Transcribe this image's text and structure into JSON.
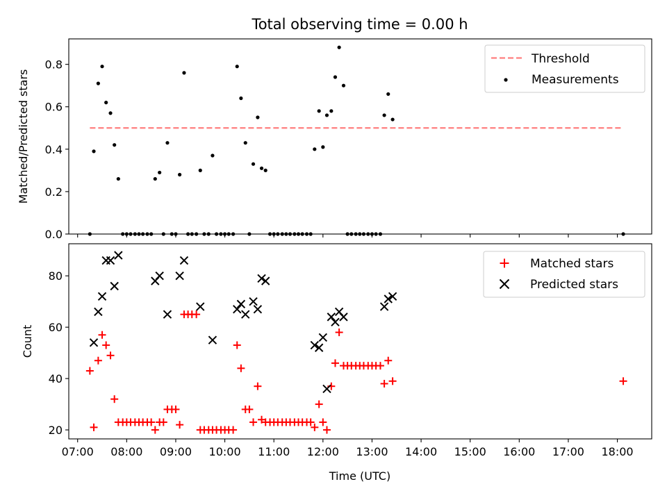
{
  "figure": {
    "title": "Total observing time = 0.00 h"
  },
  "chart_data": [
    {
      "type": "scatter",
      "ylabel": "Matched/Predicted stars",
      "xlim": [
        6.82,
        18.7
      ],
      "ylim": [
        0,
        0.92
      ],
      "yticks": [
        0.0,
        0.2,
        0.4,
        0.6,
        0.8
      ],
      "ytick_labels": [
        "0.0",
        "0.2",
        "0.4",
        "0.6",
        "0.8"
      ],
      "legend_position": "upper right",
      "series": [
        {
          "name": "Threshold",
          "kind": "dashed-line",
          "color": "#ff7f7f",
          "x": [
            7.25,
            18.1
          ],
          "y": [
            0.5,
            0.5
          ]
        },
        {
          "name": "Measurements",
          "kind": "points",
          "color": "#000000",
          "x": [
            7.25,
            7.33,
            7.42,
            7.5,
            7.58,
            7.67,
            7.75,
            7.83,
            7.92,
            8.0,
            8.08,
            8.17,
            8.25,
            8.33,
            8.42,
            8.5,
            8.58,
            8.67,
            8.75,
            8.83,
            8.92,
            9.0,
            9.08,
            9.17,
            9.25,
            9.33,
            9.42,
            9.5,
            9.58,
            9.67,
            9.75,
            9.83,
            9.92,
            10.0,
            10.08,
            10.17,
            10.25,
            10.33,
            10.42,
            10.5,
            10.58,
            10.67,
            10.75,
            10.83,
            10.92,
            11.0,
            11.08,
            11.17,
            11.25,
            11.33,
            11.42,
            11.5,
            11.58,
            11.67,
            11.75,
            11.83,
            11.92,
            12.0,
            12.08,
            12.17,
            12.25,
            12.33,
            12.42,
            12.5,
            12.58,
            12.67,
            12.75,
            12.83,
            12.92,
            13.0,
            13.08,
            13.17,
            13.25,
            13.33,
            13.42,
            18.12
          ],
          "y": [
            0.0,
            0.39,
            0.71,
            0.79,
            0.62,
            0.57,
            0.42,
            0.26,
            0.0,
            0.0,
            0.0,
            0.0,
            0.0,
            0.0,
            0.0,
            0.0,
            0.26,
            0.29,
            0.0,
            0.43,
            0.0,
            0.0,
            0.28,
            0.76,
            0.0,
            0.0,
            0.0,
            0.3,
            0.0,
            0.0,
            0.37,
            0.0,
            0.0,
            0.0,
            0.0,
            0.0,
            0.79,
            0.64,
            0.43,
            0.0,
            0.33,
            0.55,
            0.31,
            0.3,
            0.0,
            0.0,
            0.0,
            0.0,
            0.0,
            0.0,
            0.0,
            0.0,
            0.0,
            0.0,
            0.0,
            0.4,
            0.58,
            0.41,
            0.56,
            0.58,
            0.74,
            0.88,
            0.7,
            0.0,
            0.0,
            0.0,
            0.0,
            0.0,
            0.0,
            0.0,
            0.0,
            0.0,
            0.56,
            0.66,
            0.54,
            0.0
          ]
        }
      ]
    },
    {
      "type": "scatter",
      "xlabel": "Time (UTC)",
      "ylabel": "Count",
      "xlim": [
        6.82,
        18.7
      ],
      "ylim": [
        16.5,
        92.5
      ],
      "yticks": [
        20,
        40,
        60,
        80
      ],
      "ytick_labels": [
        "20",
        "40",
        "60",
        "80"
      ],
      "xticks": [
        7,
        8,
        9,
        10,
        11,
        12,
        13,
        14,
        15,
        16,
        17,
        18
      ],
      "xtick_labels": [
        "07:00",
        "08:00",
        "09:00",
        "10:00",
        "11:00",
        "12:00",
        "13:00",
        "14:00",
        "15:00",
        "16:00",
        "17:00",
        "18:00"
      ],
      "legend_position": "upper right",
      "series": [
        {
          "name": "Matched stars",
          "kind": "plus",
          "color": "#ff0000",
          "x": [
            7.25,
            7.33,
            7.42,
            7.5,
            7.58,
            7.67,
            7.75,
            7.83,
            7.92,
            8.0,
            8.08,
            8.17,
            8.25,
            8.33,
            8.42,
            8.5,
            8.58,
            8.67,
            8.75,
            8.83,
            8.92,
            9.0,
            9.08,
            9.17,
            9.25,
            9.33,
            9.42,
            9.5,
            9.58,
            9.67,
            9.75,
            9.83,
            9.92,
            10.0,
            10.08,
            10.17,
            10.25,
            10.33,
            10.42,
            10.5,
            10.58,
            10.67,
            10.75,
            10.83,
            10.92,
            11.0,
            11.08,
            11.17,
            11.25,
            11.33,
            11.42,
            11.5,
            11.58,
            11.67,
            11.75,
            11.83,
            11.92,
            12.0,
            12.08,
            12.17,
            12.25,
            12.33,
            12.42,
            12.5,
            12.58,
            12.67,
            12.75,
            12.83,
            12.92,
            13.0,
            13.08,
            13.17,
            13.25,
            13.33,
            13.42,
            18.12
          ],
          "y": [
            43,
            21,
            47,
            57,
            53,
            49,
            32,
            23,
            23,
            23,
            23,
            23,
            23,
            23,
            23,
            23,
            20,
            23,
            23,
            28,
            28,
            28,
            22,
            65,
            65,
            65,
            65,
            20,
            20,
            20,
            20,
            20,
            20,
            20,
            20,
            20,
            53,
            44,
            28,
            28,
            23,
            37,
            24,
            23,
            23,
            23,
            23,
            23,
            23,
            23,
            23,
            23,
            23,
            23,
            23,
            21,
            30,
            23,
            20,
            37,
            46,
            58,
            45,
            45,
            45,
            45,
            45,
            45,
            45,
            45,
            45,
            45,
            38,
            47,
            39,
            39
          ]
        },
        {
          "name": "Predicted stars",
          "kind": "x",
          "color": "#000000",
          "x": [
            7.33,
            7.42,
            7.5,
            7.58,
            7.67,
            7.75,
            7.83,
            8.58,
            8.67,
            8.83,
            9.08,
            9.17,
            9.5,
            9.75,
            10.25,
            10.33,
            10.42,
            10.58,
            10.67,
            10.75,
            10.83,
            11.83,
            11.92,
            12.0,
            12.08,
            12.17,
            12.25,
            12.33,
            12.42,
            13.25,
            13.33,
            13.42
          ],
          "y": [
            54,
            66,
            72,
            86,
            86,
            76,
            88,
            78,
            80,
            65,
            80,
            86,
            68,
            55,
            67,
            69,
            65,
            70,
            67,
            79,
            78,
            53,
            52,
            56,
            36,
            64,
            62,
            66,
            64,
            68,
            71,
            72
          ]
        }
      ]
    }
  ]
}
